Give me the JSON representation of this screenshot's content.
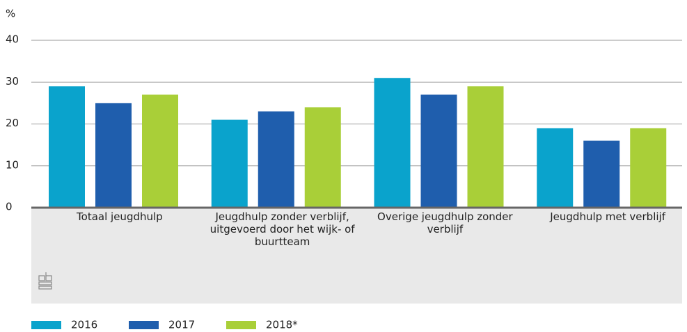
{
  "chart_data": {
    "type": "bar",
    "y_label": "%",
    "categories": [
      "Totaal jeugdhulp",
      "Jeugdhulp zonder verblijf, uitgevoerd door het wijk- of buurtteam",
      "Overige jeugdhulp zonder verblijf",
      "Jeugdhulp met verblijf"
    ],
    "series": [
      {
        "name": "2016",
        "color": "#0aa3cc",
        "values": [
          29,
          21,
          31,
          19
        ]
      },
      {
        "name": "2017",
        "color": "#1f5ead",
        "values": [
          25,
          23,
          27,
          16
        ]
      },
      {
        "name": "2018*",
        "color": "#a9cf38",
        "values": [
          27,
          24,
          29,
          19
        ]
      }
    ],
    "ylim": [
      0,
      40
    ],
    "yticks": [
      0,
      10,
      20,
      30,
      40
    ],
    "grid": true,
    "legend": "bottom"
  }
}
